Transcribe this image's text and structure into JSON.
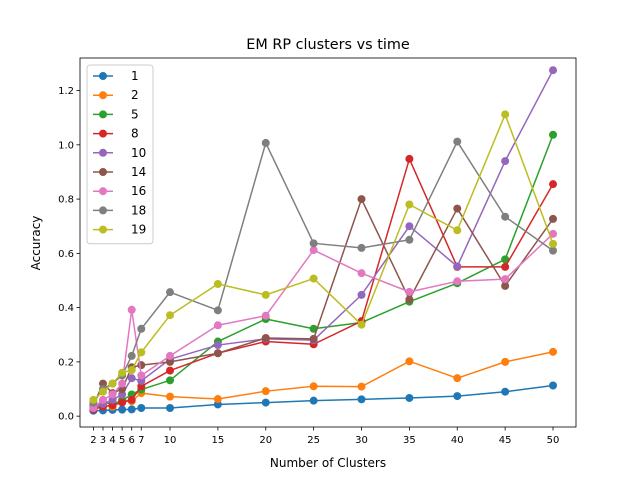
{
  "chart_data": {
    "type": "line",
    "title": "EM RP clusters vs time",
    "xlabel": "Number of Clusters",
    "ylabel": "Accuracy",
    "x": [
      2,
      3,
      4,
      5,
      6,
      7,
      10,
      15,
      20,
      25,
      30,
      35,
      40,
      45,
      50
    ],
    "xticks": [
      2,
      3,
      4,
      5,
      6,
      7,
      10,
      15,
      20,
      25,
      30,
      35,
      40,
      45,
      50
    ],
    "xlim": [
      0.6,
      52.4
    ],
    "yticks": [
      0.0,
      0.2,
      0.4,
      0.6,
      0.8,
      1.0,
      1.2
    ],
    "ytick_labels": [
      "0.0",
      "0.2",
      "0.4",
      "0.6",
      "0.8",
      "1.0",
      "1.2"
    ],
    "ylim": [
      -0.04,
      1.32
    ],
    "grid": false,
    "legend_position": "upper-left",
    "series": [
      {
        "name": "1",
        "color": "#1f77b4",
        "values": [
          0.02,
          0.021,
          0.023,
          0.024,
          0.025,
          0.03,
          0.03,
          0.043,
          0.05,
          0.057,
          0.062,
          0.067,
          0.074,
          0.09,
          0.113
        ]
      },
      {
        "name": "2",
        "color": "#ff7f0e",
        "values": [
          0.03,
          0.04,
          0.035,
          0.06,
          0.055,
          0.085,
          0.072,
          0.063,
          0.092,
          0.11,
          0.109,
          0.202,
          0.14,
          0.2,
          0.237
        ]
      },
      {
        "name": "5",
        "color": "#2ca02c",
        "values": [
          0.035,
          0.05,
          0.045,
          0.058,
          0.08,
          0.098,
          0.132,
          0.275,
          0.358,
          0.322,
          0.345,
          0.422,
          0.49,
          0.578,
          1.037
        ]
      },
      {
        "name": "8",
        "color": "#d62728",
        "values": [
          0.025,
          0.035,
          0.04,
          0.05,
          0.06,
          0.11,
          0.168,
          0.232,
          0.275,
          0.265,
          0.35,
          0.948,
          0.55,
          0.55,
          0.855
        ]
      },
      {
        "name": "10",
        "color": "#9467bd",
        "values": [
          0.03,
          0.045,
          0.06,
          0.08,
          0.14,
          0.13,
          0.21,
          0.262,
          0.285,
          0.28,
          0.447,
          0.7,
          0.552,
          0.94,
          1.275
        ]
      },
      {
        "name": "14",
        "color": "#8c564b",
        "values": [
          0.04,
          0.12,
          0.085,
          0.1,
          0.18,
          0.188,
          0.2,
          0.232,
          0.288,
          0.285,
          0.8,
          0.43,
          0.765,
          0.48,
          0.727
        ]
      },
      {
        "name": "16",
        "color": "#e377c2",
        "values": [
          0.03,
          0.06,
          0.08,
          0.12,
          0.392,
          0.15,
          0.222,
          0.335,
          0.37,
          0.612,
          0.527,
          0.458,
          0.497,
          0.505,
          0.672
        ]
      },
      {
        "name": "18",
        "color": "#7f7f7f",
        "values": [
          0.05,
          0.1,
          0.12,
          0.15,
          0.222,
          0.322,
          0.457,
          0.39,
          1.007,
          0.637,
          0.62,
          0.65,
          1.012,
          0.735,
          0.61
        ]
      },
      {
        "name": "19",
        "color": "#bcbd22",
        "values": [
          0.06,
          0.09,
          0.12,
          0.16,
          0.17,
          0.235,
          0.372,
          0.487,
          0.447,
          0.507,
          0.337,
          0.78,
          0.685,
          1.112,
          0.635
        ]
      }
    ]
  }
}
